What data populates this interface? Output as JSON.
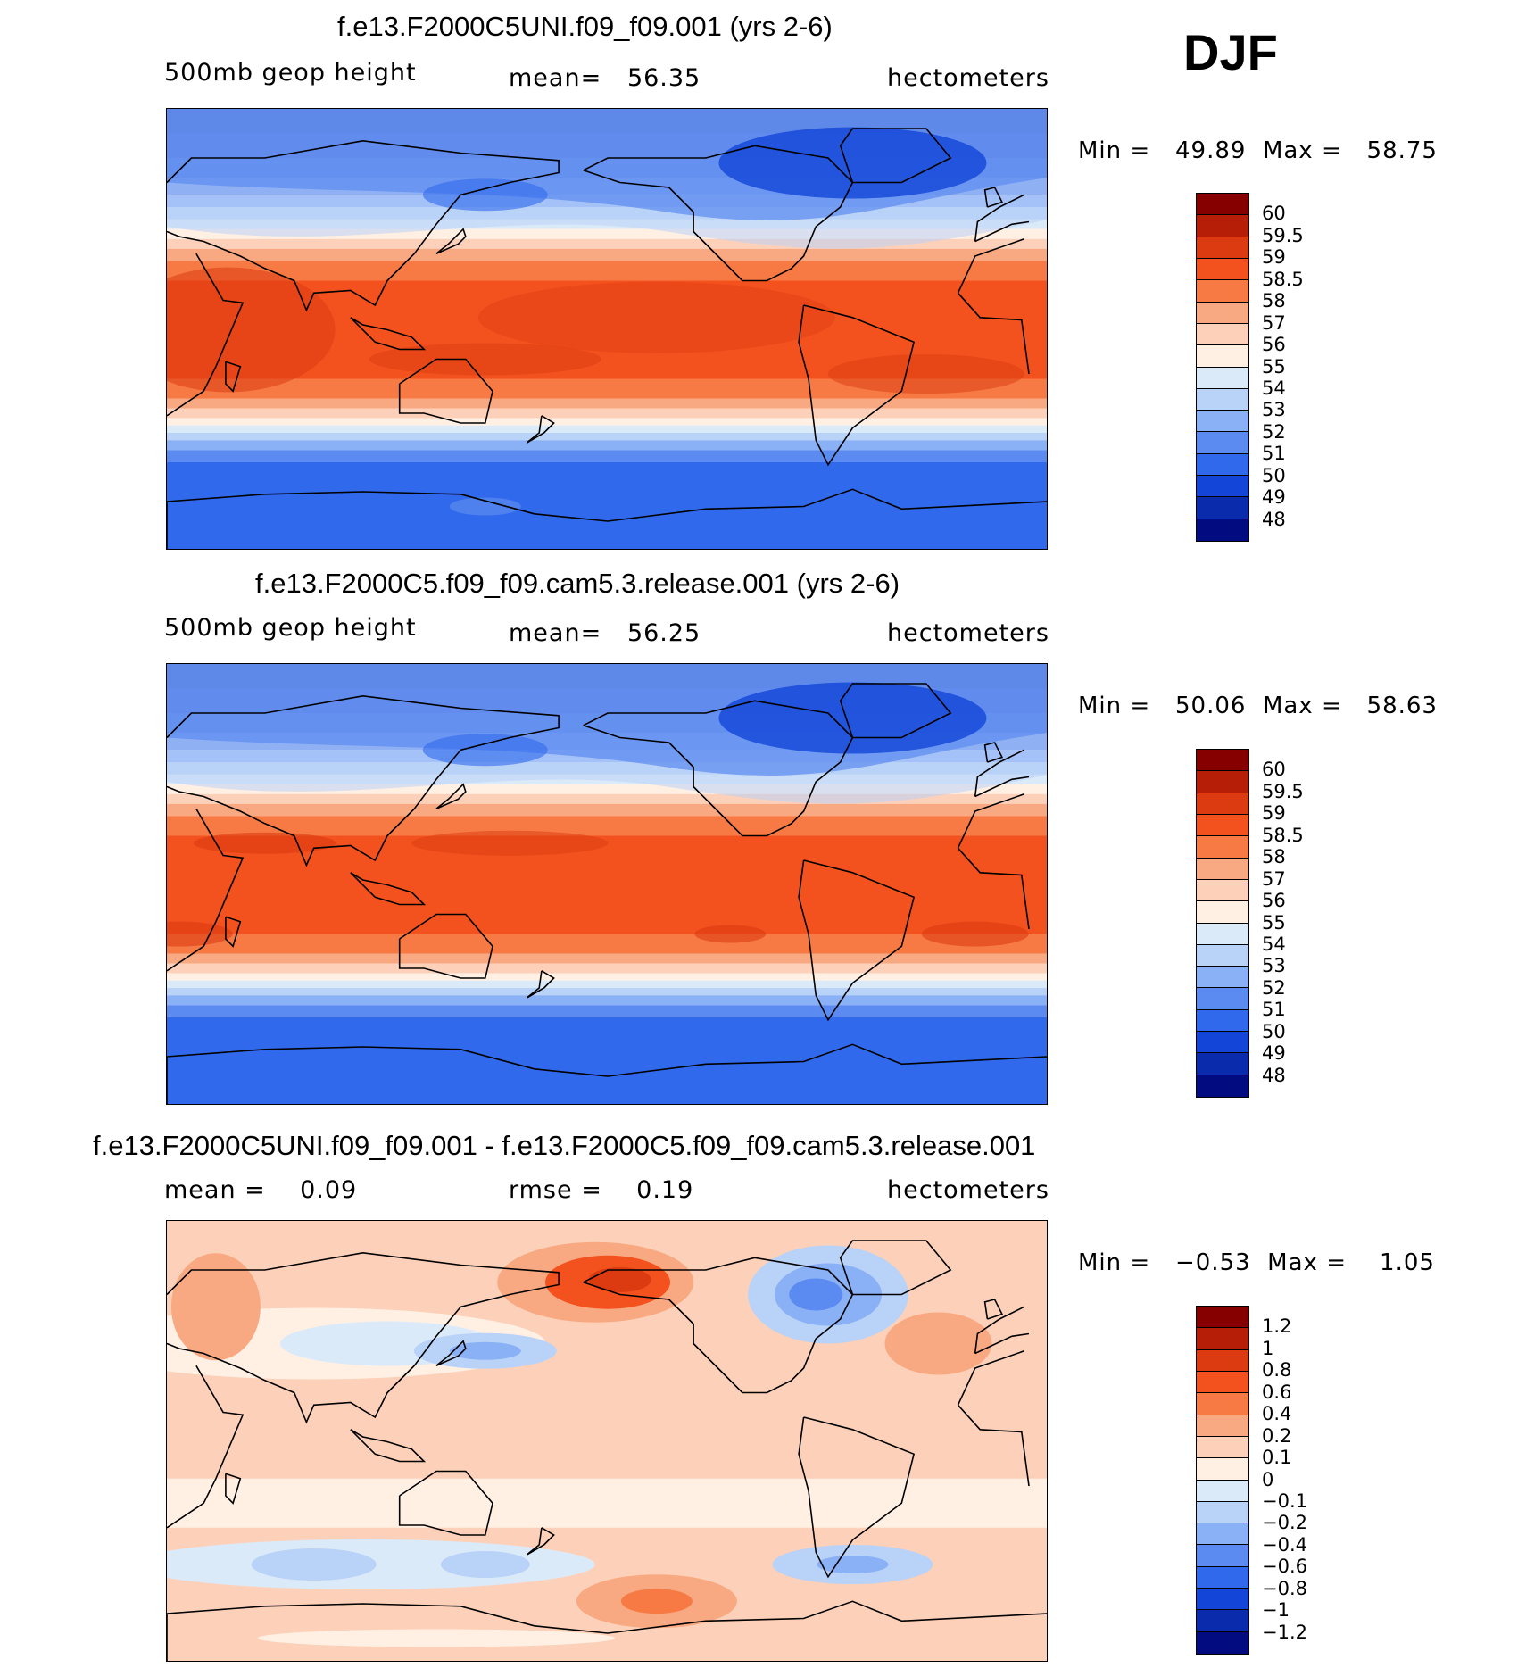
{
  "season": "DJF",
  "colors": {
    "warm": [
      "#870000",
      "#b71e08",
      "#dc3a10",
      "#f3521f",
      "#f77a45",
      "#f9a982",
      "#fdd1b9",
      "#fff0e3"
    ],
    "cool": [
      "#dbeaf9",
      "#b9d2f8",
      "#8ab0f5",
      "#5b8af0",
      "#3069ec",
      "#1245d8",
      "#0a2cac",
      "#020c80"
    ],
    "coastline": "#000000"
  },
  "panels": [
    {
      "title": "f.e13.F2000C5UNI.f09_f09.001 (yrs 2-6)",
      "left": "500mb geop height",
      "center": "mean=   56.35",
      "right": "hectometers",
      "minmax": "Min =   49.89  Max =   58.75",
      "colorbar_labels": [
        "60",
        "59.5",
        "59",
        "58.5",
        "58",
        "57",
        "56",
        "55",
        "54",
        "53",
        "52",
        "51",
        "50",
        "49",
        "48"
      ],
      "field": "model",
      "variant": 1
    },
    {
      "title": "f.e13.F2000C5.f09_f09.cam5.3.release.001 (yrs 2-6)",
      "left": "500mb geop height",
      "center": "mean=   56.25",
      "right": "hectometers",
      "minmax": "Min =   50.06  Max =   58.63",
      "colorbar_labels": [
        "60",
        "59.5",
        "59",
        "58.5",
        "58",
        "57",
        "56",
        "55",
        "54",
        "53",
        "52",
        "51",
        "50",
        "49",
        "48"
      ],
      "field": "model",
      "variant": 2
    },
    {
      "title": "f.e13.F2000C5UNI.f09_f09.001 - f.e13.F2000C5.f09_f09.cam5.3.release.001",
      "left": "mean =    0.09",
      "center": "rmse =    0.19",
      "right": "hectometers",
      "minmax": "Min =   −0.53  Max =    1.05",
      "colorbar_labels": [
        "1.2",
        "1",
        "0.8",
        "0.6",
        "0.4",
        "0.2",
        "0.1",
        "0",
        "−0.1",
        "−0.2",
        "−0.4",
        "−0.6",
        "−0.8",
        "−1",
        "−1.2"
      ],
      "field": "difference",
      "variant": 3
    }
  ]
}
